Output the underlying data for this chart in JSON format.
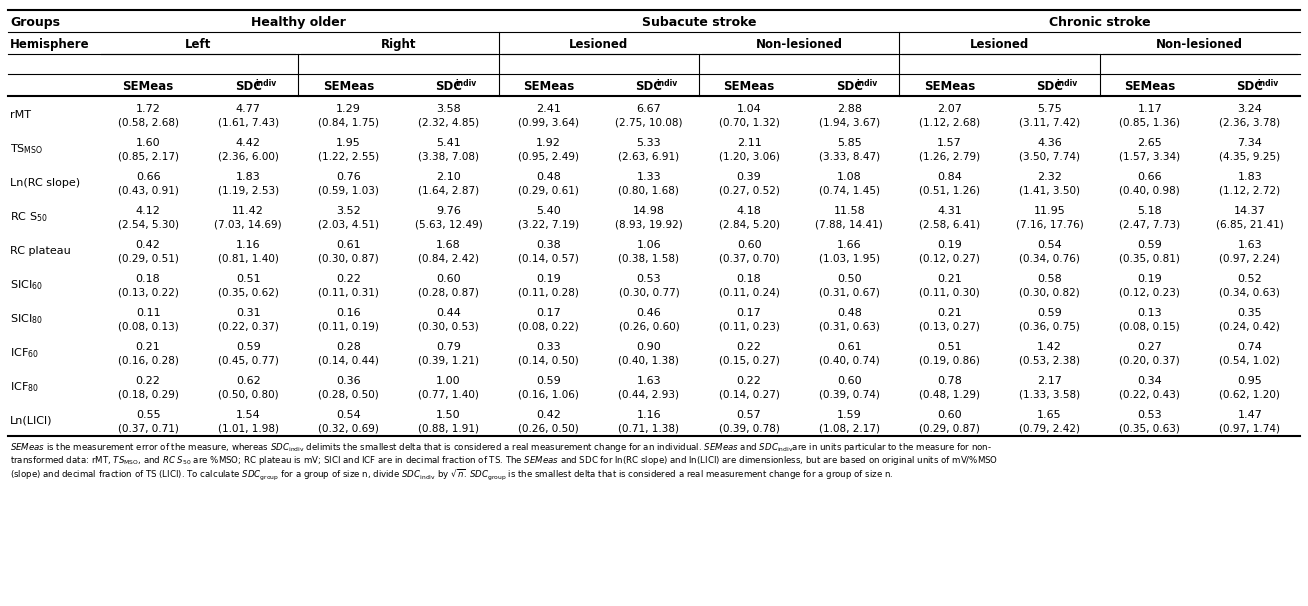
{
  "background_color": "#ffffff",
  "data": [
    [
      "1.72\n(0.58, 2.68)",
      "4.77\n(1.61, 7.43)",
      "1.29\n(0.84, 1.75)",
      "3.58\n(2.32, 4.85)",
      "2.41\n(0.99, 3.64)",
      "6.67\n(2.75, 10.08)",
      "1.04\n(0.70, 1.32)",
      "2.88\n(1.94, 3.67)",
      "2.07\n(1.12, 2.68)",
      "5.75\n(3.11, 7.42)",
      "1.17\n(0.85, 1.36)",
      "3.24\n(2.36, 3.78)"
    ],
    [
      "1.60\n(0.85, 2.17)",
      "4.42\n(2.36, 6.00)",
      "1.95\n(1.22, 2.55)",
      "5.41\n(3.38, 7.08)",
      "1.92\n(0.95, 2.49)",
      "5.33\n(2.63, 6.91)",
      "2.11\n(1.20, 3.06)",
      "5.85\n(3.33, 8.47)",
      "1.57\n(1.26, 2.79)",
      "4.36\n(3.50, 7.74)",
      "2.65\n(1.57, 3.34)",
      "7.34\n(4.35, 9.25)"
    ],
    [
      "0.66\n(0.43, 0.91)",
      "1.83\n(1.19, 2.53)",
      "0.76\n(0.59, 1.03)",
      "2.10\n(1.64, 2.87)",
      "0.48\n(0.29, 0.61)",
      "1.33\n(0.80, 1.68)",
      "0.39\n(0.27, 0.52)",
      "1.08\n(0.74, 1.45)",
      "0.84\n(0.51, 1.26)",
      "2.32\n(1.41, 3.50)",
      "0.66\n(0.40, 0.98)",
      "1.83\n(1.12, 2.72)"
    ],
    [
      "4.12\n(2.54, 5.30)",
      "11.42\n(7.03, 14.69)",
      "3.52\n(2.03, 4.51)",
      "9.76\n(5.63, 12.49)",
      "5.40\n(3.22, 7.19)",
      "14.98\n(8.93, 19.92)",
      "4.18\n(2.84, 5.20)",
      "11.58\n(7.88, 14.41)",
      "4.31\n(2.58, 6.41)",
      "11.95\n(7.16, 17.76)",
      "5.18\n(2.47, 7.73)",
      "14.37\n(6.85, 21.41)"
    ],
    [
      "0.42\n(0.29, 0.51)",
      "1.16\n(0.81, 1.40)",
      "0.61\n(0.30, 0.87)",
      "1.68\n(0.84, 2.42)",
      "0.38\n(0.14, 0.57)",
      "1.06\n(0.38, 1.58)",
      "0.60\n(0.37, 0.70)",
      "1.66\n(1.03, 1.95)",
      "0.19\n(0.12, 0.27)",
      "0.54\n(0.34, 0.76)",
      "0.59\n(0.35, 0.81)",
      "1.63\n(0.97, 2.24)"
    ],
    [
      "0.18\n(0.13, 0.22)",
      "0.51\n(0.35, 0.62)",
      "0.22\n(0.11, 0.31)",
      "0.60\n(0.28, 0.87)",
      "0.19\n(0.11, 0.28)",
      "0.53\n(0.30, 0.77)",
      "0.18\n(0.11, 0.24)",
      "0.50\n(0.31, 0.67)",
      "0.21\n(0.11, 0.30)",
      "0.58\n(0.30, 0.82)",
      "0.19\n(0.12, 0.23)",
      "0.52\n(0.34, 0.63)"
    ],
    [
      "0.11\n(0.08, 0.13)",
      "0.31\n(0.22, 0.37)",
      "0.16\n(0.11, 0.19)",
      "0.44\n(0.30, 0.53)",
      "0.17\n(0.08, 0.22)",
      "0.46\n(0.26, 0.60)",
      "0.17\n(0.11, 0.23)",
      "0.48\n(0.31, 0.63)",
      "0.21\n(0.13, 0.27)",
      "0.59\n(0.36, 0.75)",
      "0.13\n(0.08, 0.15)",
      "0.35\n(0.24, 0.42)"
    ],
    [
      "0.21\n(0.16, 0.28)",
      "0.59\n(0.45, 0.77)",
      "0.28\n(0.14, 0.44)",
      "0.79\n(0.39, 1.21)",
      "0.33\n(0.14, 0.50)",
      "0.90\n(0.40, 1.38)",
      "0.22\n(0.15, 0.27)",
      "0.61\n(0.40, 0.74)",
      "0.51\n(0.19, 0.86)",
      "1.42\n(0.53, 2.38)",
      "0.27\n(0.20, 0.37)",
      "0.74\n(0.54, 1.02)"
    ],
    [
      "0.22\n(0.18, 0.29)",
      "0.62\n(0.50, 0.80)",
      "0.36\n(0.28, 0.50)",
      "1.00\n(0.77, 1.40)",
      "0.59\n(0.16, 1.06)",
      "1.63\n(0.44, 2.93)",
      "0.22\n(0.14, 0.27)",
      "0.60\n(0.39, 0.74)",
      "0.78\n(0.48, 1.29)",
      "2.17\n(1.33, 3.58)",
      "0.34\n(0.22, 0.43)",
      "0.95\n(0.62, 1.20)"
    ],
    [
      "0.55\n(0.37, 0.71)",
      "1.54\n(1.01, 1.98)",
      "0.54\n(0.32, 0.69)",
      "1.50\n(0.88, 1.91)",
      "0.42\n(0.26, 0.50)",
      "1.16\n(0.71, 1.38)",
      "0.57\n(0.39, 0.78)",
      "1.59\n(1.08, 2.17)",
      "0.60\n(0.29, 0.87)",
      "1.65\n(0.79, 2.42)",
      "0.53\n(0.35, 0.63)",
      "1.47\n(0.97, 1.74)"
    ]
  ]
}
